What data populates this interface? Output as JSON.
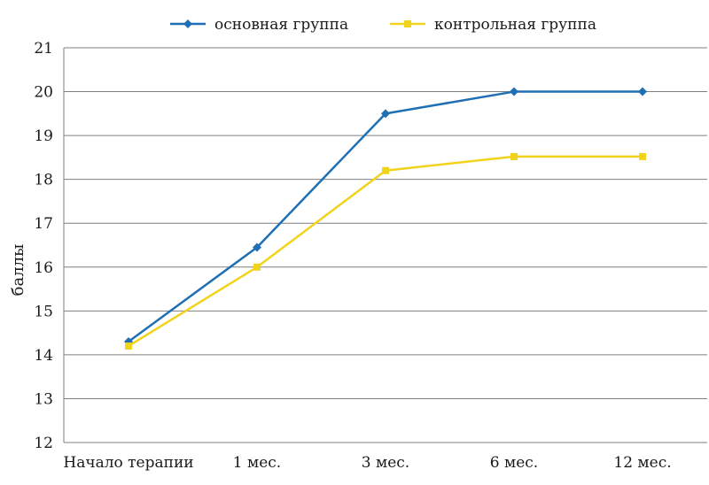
{
  "chart_data": {
    "type": "line",
    "title": "",
    "xlabel": "",
    "ylabel": "баллы",
    "ylim": [
      12,
      21
    ],
    "yticks": [
      12,
      13,
      14,
      15,
      16,
      17,
      18,
      19,
      20,
      21
    ],
    "grid": true,
    "legend_position": "top",
    "categories": [
      "Начало терапии",
      "1 мес.",
      "3 мес.",
      "6 мес.",
      "12 мес."
    ],
    "series": [
      {
        "name": "основная группа",
        "color": "#1f6fb5",
        "marker": "diamond",
        "values": [
          14.3,
          16.45,
          19.5,
          20.0,
          20.0
        ]
      },
      {
        "name": "контрольная группа",
        "color": "#f2d31b",
        "marker": "square",
        "values": [
          14.2,
          16.0,
          18.2,
          18.52,
          18.52
        ]
      }
    ]
  }
}
